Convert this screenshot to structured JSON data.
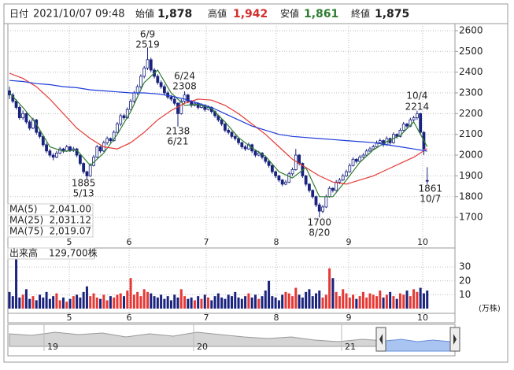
{
  "header": {
    "date_label": "日付",
    "date": "2021/10/07 09:48",
    "open_label": "始値",
    "open": "1,878",
    "high_label": "高値",
    "high": "1,942",
    "low_label": "安値",
    "low": "1,861",
    "close_label": "終値",
    "close": "1,875"
  },
  "chart_data": {
    "type": "candlestick",
    "ylim": [
      1560,
      2634
    ],
    "yticks": [
      1700,
      1800,
      1900,
      2000,
      2100,
      2200,
      2300,
      2400,
      2500,
      2600
    ],
    "grid": true,
    "up_color": "#ffffff",
    "down_color": "#1a237e",
    "edge_color": "#1a237e",
    "months": [
      "5",
      "6",
      "7",
      "8",
      "9",
      "10"
    ],
    "candles": [
      [
        2310,
        2330,
        2270,
        2290
      ],
      [
        2290,
        2300,
        2250,
        2260
      ],
      [
        2260,
        2270,
        2220,
        2230
      ],
      [
        2230,
        2240,
        2170,
        2180
      ],
      [
        2180,
        2215,
        2170,
        2200
      ],
      [
        2200,
        2205,
        2150,
        2160
      ],
      [
        2160,
        2170,
        2120,
        2130
      ],
      [
        2130,
        2180,
        2125,
        2170
      ],
      [
        2170,
        2175,
        2100,
        2110
      ],
      [
        2110,
        2120,
        2080,
        2090
      ],
      [
        2090,
        2095,
        2040,
        2050
      ],
      [
        2050,
        2060,
        2010,
        2020
      ],
      [
        2020,
        2030,
        1990,
        2000
      ],
      [
        2000,
        2010,
        1975,
        1990
      ],
      [
        1990,
        2020,
        1985,
        2010
      ],
      [
        2010,
        2040,
        2005,
        2030
      ],
      [
        2030,
        2035,
        2010,
        2020
      ],
      [
        2020,
        2050,
        2015,
        2040
      ],
      [
        2040,
        2045,
        2015,
        2025
      ],
      [
        2025,
        2040,
        2015,
        2030
      ],
      [
        2030,
        2035,
        1990,
        2000
      ],
      [
        2000,
        2005,
        1950,
        1960
      ],
      [
        1960,
        1965,
        1910,
        1920
      ],
      [
        1920,
        1925,
        1885,
        1900
      ],
      [
        1900,
        1960,
        1895,
        1950
      ],
      [
        1950,
        2000,
        1945,
        1990
      ],
      [
        1990,
        2050,
        1985,
        2040
      ],
      [
        2040,
        2045,
        2010,
        2020
      ],
      [
        2020,
        2070,
        2015,
        2060
      ],
      [
        2060,
        2090,
        2050,
        2080
      ],
      [
        2080,
        2085,
        2060,
        2070
      ],
      [
        2070,
        2120,
        2065,
        2110
      ],
      [
        2110,
        2160,
        2105,
        2150
      ],
      [
        2150,
        2200,
        2140,
        2190
      ],
      [
        2190,
        2200,
        2170,
        2180
      ],
      [
        2180,
        2230,
        2175,
        2220
      ],
      [
        2220,
        2270,
        2215,
        2260
      ],
      [
        2260,
        2310,
        2250,
        2300
      ],
      [
        2300,
        2340,
        2290,
        2330
      ],
      [
        2330,
        2390,
        2320,
        2380
      ],
      [
        2380,
        2430,
        2370,
        2420
      ],
      [
        2420,
        2519,
        2410,
        2460
      ],
      [
        2460,
        2470,
        2400,
        2410
      ],
      [
        2410,
        2420,
        2370,
        2380
      ],
      [
        2380,
        2390,
        2340,
        2350
      ],
      [
        2350,
        2360,
        2320,
        2330
      ],
      [
        2330,
        2340,
        2290,
        2300
      ],
      [
        2300,
        2310,
        2270,
        2280
      ],
      [
        2280,
        2290,
        2260,
        2270
      ],
      [
        2270,
        2280,
        2240,
        2250
      ],
      [
        2250,
        2255,
        2138,
        2200
      ],
      [
        2200,
        2270,
        2195,
        2260
      ],
      [
        2260,
        2308,
        2250,
        2290
      ],
      [
        2290,
        2295,
        2250,
        2260
      ],
      [
        2260,
        2265,
        2230,
        2240
      ],
      [
        2240,
        2260,
        2235,
        2250
      ],
      [
        2250,
        2255,
        2220,
        2230
      ],
      [
        2230,
        2250,
        2225,
        2240
      ],
      [
        2240,
        2245,
        2210,
        2220
      ],
      [
        2220,
        2240,
        2215,
        2230
      ],
      [
        2230,
        2235,
        2200,
        2210
      ],
      [
        2210,
        2215,
        2180,
        2190
      ],
      [
        2190,
        2195,
        2160,
        2170
      ],
      [
        2170,
        2175,
        2140,
        2150
      ],
      [
        2150,
        2155,
        2110,
        2120
      ],
      [
        2120,
        2130,
        2100,
        2110
      ],
      [
        2110,
        2115,
        2080,
        2090
      ],
      [
        2090,
        2100,
        2070,
        2080
      ],
      [
        2080,
        2085,
        2050,
        2060
      ],
      [
        2060,
        2065,
        2030,
        2040
      ],
      [
        2040,
        2050,
        2020,
        2030
      ],
      [
        2030,
        2060,
        2025,
        2050
      ],
      [
        2050,
        2055,
        2010,
        2020
      ],
      [
        2020,
        2025,
        1990,
        2000
      ],
      [
        2000,
        2020,
        1995,
        2010
      ],
      [
        2010,
        2015,
        1980,
        1990
      ],
      [
        1990,
        1995,
        1960,
        1970
      ],
      [
        1970,
        1975,
        1940,
        1950
      ],
      [
        1950,
        1955,
        1910,
        1920
      ],
      [
        1920,
        1925,
        1890,
        1900
      ],
      [
        1900,
        1905,
        1870,
        1880
      ],
      [
        1880,
        1885,
        1850,
        1860
      ],
      [
        1860,
        1880,
        1855,
        1870
      ],
      [
        1870,
        1920,
        1865,
        1910
      ],
      [
        1910,
        1940,
        1900,
        1930
      ],
      [
        1930,
        2030,
        1925,
        2000
      ],
      [
        2000,
        2005,
        1950,
        1960
      ],
      [
        1960,
        1965,
        1890,
        1900
      ],
      [
        1900,
        1905,
        1850,
        1860
      ],
      [
        1860,
        1865,
        1820,
        1830
      ],
      [
        1830,
        1835,
        1790,
        1800
      ],
      [
        1800,
        1805,
        1750,
        1760
      ],
      [
        1760,
        1770,
        1700,
        1730
      ],
      [
        1730,
        1760,
        1720,
        1750
      ],
      [
        1750,
        1810,
        1745,
        1800
      ],
      [
        1800,
        1850,
        1795,
        1840
      ],
      [
        1840,
        1845,
        1820,
        1830
      ],
      [
        1830,
        1880,
        1825,
        1870
      ],
      [
        1870,
        1890,
        1860,
        1880
      ],
      [
        1880,
        1910,
        1875,
        1900
      ],
      [
        1900,
        1930,
        1895,
        1920
      ],
      [
        1920,
        1960,
        1915,
        1950
      ],
      [
        1950,
        1990,
        1945,
        1980
      ],
      [
        1980,
        1985,
        1960,
        1970
      ],
      [
        1970,
        2000,
        1965,
        1990
      ],
      [
        1990,
        2010,
        1985,
        2000
      ],
      [
        2000,
        2030,
        1995,
        2020
      ],
      [
        2020,
        2040,
        2015,
        2030
      ],
      [
        2030,
        2050,
        2025,
        2040
      ],
      [
        2040,
        2070,
        2035,
        2060
      ],
      [
        2060,
        2080,
        2055,
        2070
      ],
      [
        2070,
        2075,
        2040,
        2050
      ],
      [
        2050,
        2090,
        2045,
        2080
      ],
      [
        2080,
        2085,
        2050,
        2060
      ],
      [
        2060,
        2110,
        2055,
        2100
      ],
      [
        2100,
        2105,
        2080,
        2090
      ],
      [
        2090,
        2130,
        2085,
        2120
      ],
      [
        2120,
        2160,
        2115,
        2150
      ],
      [
        2150,
        2155,
        2130,
        2140
      ],
      [
        2140,
        2180,
        2135,
        2170
      ],
      [
        2170,
        2190,
        2160,
        2180
      ],
      [
        2180,
        2214,
        2170,
        2200
      ],
      [
        2200,
        2205,
        2100,
        2110
      ],
      [
        2110,
        2115,
        2000,
        2030
      ],
      [
        1878,
        1942,
        1861,
        1875
      ]
    ],
    "ma_x": [
      0,
      4,
      8,
      12,
      16,
      20,
      24,
      28,
      32,
      36,
      40,
      44,
      48,
      52,
      56,
      60,
      64,
      68,
      72,
      76,
      80,
      84,
      88,
      92,
      96,
      100,
      104,
      108,
      112,
      116,
      120,
      124
    ],
    "series": [
      {
        "name": "MA(5)",
        "color": "#2e7d32",
        "last": {
          "value": 2041,
          "label": "2,041.00"
        },
        "values": [
          2300,
          2230,
          2150,
          2040,
          2018,
          2025,
          1950,
          2010,
          2100,
          2210,
          2350,
          2410,
          2300,
          2240,
          2245,
          2225,
          2160,
          2085,
          2035,
          1995,
          1920,
          1890,
          1940,
          1800,
          1800,
          1880,
          1965,
          2025,
          2065,
          2095,
          2160,
          2041
        ]
      },
      {
        "name": "MA(25)",
        "color": "#e53935",
        "last": {
          "value": 2031.12,
          "label": "2,031.12"
        },
        "values": [
          2395,
          2370,
          2330,
          2270,
          2200,
          2130,
          2080,
          2040,
          2030,
          2060,
          2110,
          2170,
          2215,
          2250,
          2270,
          2265,
          2240,
          2200,
          2150,
          2100,
          2040,
          1980,
          1940,
          1900,
          1870,
          1860,
          1880,
          1900,
          1930,
          1960,
          1990,
          2031.12
        ]
      },
      {
        "name": "MA(75)",
        "color": "#1e3cd8",
        "last": {
          "value": 2019.07,
          "label": "2,019.07"
        },
        "values": [
          2360,
          2355,
          2345,
          2340,
          2330,
          2325,
          2315,
          2310,
          2305,
          2300,
          2300,
          2295,
          2285,
          2270,
          2250,
          2230,
          2200,
          2170,
          2140,
          2120,
          2100,
          2090,
          2085,
          2080,
          2075,
          2070,
          2065,
          2060,
          2050,
          2040,
          2030,
          2019.07
        ]
      }
    ],
    "annotations": [
      {
        "date": "6/9",
        "price": 2519
      },
      {
        "date": "6/24",
        "price": 2308
      },
      {
        "date": "6/21",
        "price": 2138
      },
      {
        "date": "5/13",
        "price": 1885
      },
      {
        "date": "8/20",
        "price": 1700
      },
      {
        "date": "10/4",
        "price": 2214
      },
      {
        "date": "10/7",
        "price": 1861
      }
    ],
    "volume_label": "出来高",
    "volume_last": "129,700株",
    "volume_unit": "(万株)",
    "vlim": [
      0,
      42
    ],
    "vticks": [
      10,
      20,
      30
    ],
    "volume_up_color": "#e53935",
    "volume_down_color": "#1a237e",
    "volume": [
      12,
      9,
      37,
      8,
      10,
      14,
      7,
      9,
      6,
      10,
      8,
      12,
      7,
      9,
      11,
      6,
      8,
      5,
      7,
      9,
      10,
      8,
      12,
      16,
      9,
      11,
      8,
      7,
      10,
      6,
      9,
      8,
      10,
      11,
      9,
      13,
      22,
      10,
      12,
      9,
      14,
      12,
      11,
      9,
      8,
      10,
      7,
      9,
      6,
      10,
      8,
      14,
      9,
      7,
      8,
      6,
      9,
      7,
      10,
      8,
      6,
      9,
      11,
      8,
      7,
      10,
      9,
      12,
      8,
      7,
      9,
      11,
      8,
      10,
      7,
      9,
      13,
      20,
      9,
      8,
      6,
      10,
      12,
      11,
      9,
      15,
      10,
      8,
      12,
      14,
      9,
      11,
      13,
      8,
      10,
      29,
      22,
      12,
      9,
      14,
      11,
      8,
      10,
      7,
      9,
      12,
      8,
      11,
      10,
      9,
      13,
      8,
      10,
      12,
      9,
      7,
      11,
      10,
      13,
      9,
      14,
      12,
      15,
      11,
      13
    ],
    "navigator_years": [
      "19",
      "20",
      "21"
    ]
  }
}
